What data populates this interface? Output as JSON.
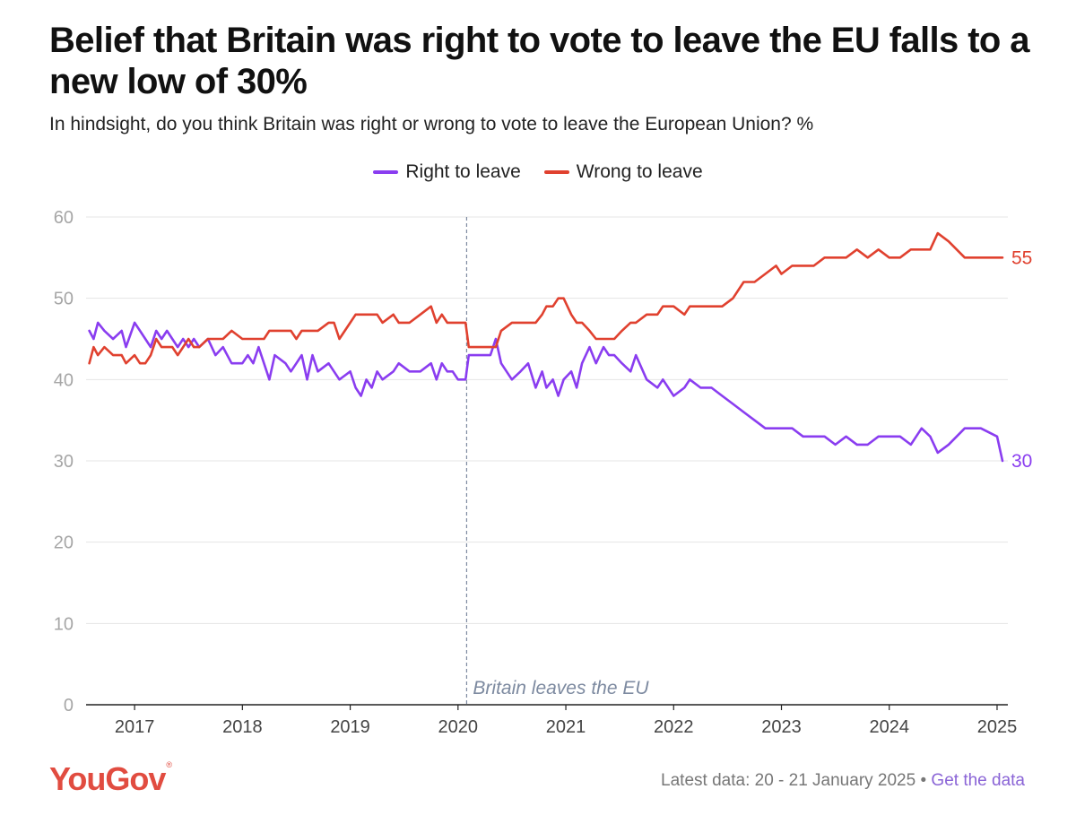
{
  "title": "Belief that Britain was right to vote to leave the EU falls to a new low of 30%",
  "subtitle": "In hindsight, do you think Britain was right or wrong to vote to leave the European Union? %",
  "footer": {
    "latest": "Latest data: 20 - 21 January 2025",
    "separator": "•",
    "link": "Get the data"
  },
  "logo": {
    "text": "YouGov",
    "mark": "®"
  },
  "colors": {
    "right": "#8a3df0",
    "wrong": "#e0412f",
    "grid": "#e4e4e4",
    "annotation_line": "#7d8aa0"
  },
  "chart_data": {
    "type": "line",
    "title": "Belief that Britain was right to vote to leave the EU falls to a new low of 30%",
    "subtitle": "In hindsight, do you think Britain was right or wrong to vote to leave the European Union? %",
    "ylim": [
      0,
      60
    ],
    "yticks": [
      0,
      10,
      20,
      30,
      40,
      50,
      60
    ],
    "xlim": [
      2016.55,
      2025.1
    ],
    "xticks": [
      2017,
      2018,
      2019,
      2020,
      2021,
      2022,
      2023,
      2024,
      2025
    ],
    "grid": true,
    "legend_position": "top-center",
    "annotation": {
      "x": 2020.08,
      "label": "Britain leaves the EU"
    },
    "series": [
      {
        "name": "Right to leave",
        "end_label": "30",
        "points": [
          [
            2016.58,
            46
          ],
          [
            2016.62,
            45
          ],
          [
            2016.66,
            47
          ],
          [
            2016.72,
            46
          ],
          [
            2016.8,
            45
          ],
          [
            2016.88,
            46
          ],
          [
            2016.92,
            44
          ],
          [
            2017.0,
            47
          ],
          [
            2017.05,
            46
          ],
          [
            2017.1,
            45
          ],
          [
            2017.15,
            44
          ],
          [
            2017.2,
            46
          ],
          [
            2017.25,
            45
          ],
          [
            2017.3,
            46
          ],
          [
            2017.35,
            45
          ],
          [
            2017.4,
            44
          ],
          [
            2017.45,
            45
          ],
          [
            2017.5,
            44
          ],
          [
            2017.55,
            45
          ],
          [
            2017.6,
            44
          ],
          [
            2017.68,
            45
          ],
          [
            2017.75,
            43
          ],
          [
            2017.82,
            44
          ],
          [
            2017.9,
            42
          ],
          [
            2018.0,
            42
          ],
          [
            2018.05,
            43
          ],
          [
            2018.1,
            42
          ],
          [
            2018.15,
            44
          ],
          [
            2018.2,
            42
          ],
          [
            2018.25,
            40
          ],
          [
            2018.3,
            43
          ],
          [
            2018.4,
            42
          ],
          [
            2018.45,
            41
          ],
          [
            2018.5,
            42
          ],
          [
            2018.55,
            43
          ],
          [
            2018.6,
            40
          ],
          [
            2018.65,
            43
          ],
          [
            2018.7,
            41
          ],
          [
            2018.8,
            42
          ],
          [
            2018.85,
            41
          ],
          [
            2018.9,
            40
          ],
          [
            2019.0,
            41
          ],
          [
            2019.05,
            39
          ],
          [
            2019.1,
            38
          ],
          [
            2019.15,
            40
          ],
          [
            2019.2,
            39
          ],
          [
            2019.25,
            41
          ],
          [
            2019.3,
            40
          ],
          [
            2019.4,
            41
          ],
          [
            2019.45,
            42
          ],
          [
            2019.55,
            41
          ],
          [
            2019.65,
            41
          ],
          [
            2019.75,
            42
          ],
          [
            2019.8,
            40
          ],
          [
            2019.85,
            42
          ],
          [
            2019.9,
            41
          ],
          [
            2019.95,
            41
          ],
          [
            2020.0,
            40
          ],
          [
            2020.07,
            40
          ],
          [
            2020.1,
            43
          ],
          [
            2020.2,
            43
          ],
          [
            2020.3,
            43
          ],
          [
            2020.35,
            45
          ],
          [
            2020.4,
            42
          ],
          [
            2020.5,
            40
          ],
          [
            2020.58,
            41
          ],
          [
            2020.65,
            42
          ],
          [
            2020.72,
            39
          ],
          [
            2020.78,
            41
          ],
          [
            2020.82,
            39
          ],
          [
            2020.88,
            40
          ],
          [
            2020.93,
            38
          ],
          [
            2020.98,
            40
          ],
          [
            2021.05,
            41
          ],
          [
            2021.1,
            39
          ],
          [
            2021.15,
            42
          ],
          [
            2021.22,
            44
          ],
          [
            2021.28,
            42
          ],
          [
            2021.35,
            44
          ],
          [
            2021.4,
            43
          ],
          [
            2021.45,
            43
          ],
          [
            2021.52,
            42
          ],
          [
            2021.6,
            41
          ],
          [
            2021.65,
            43
          ],
          [
            2021.75,
            40
          ],
          [
            2021.85,
            39
          ],
          [
            2021.9,
            40
          ],
          [
            2022.0,
            38
          ],
          [
            2022.1,
            39
          ],
          [
            2022.15,
            40
          ],
          [
            2022.25,
            39
          ],
          [
            2022.35,
            39
          ],
          [
            2022.45,
            38
          ],
          [
            2022.55,
            37
          ],
          [
            2022.65,
            36
          ],
          [
            2022.75,
            35
          ],
          [
            2022.85,
            34
          ],
          [
            2022.95,
            34
          ],
          [
            2023.0,
            34
          ],
          [
            2023.1,
            34
          ],
          [
            2023.2,
            33
          ],
          [
            2023.3,
            33
          ],
          [
            2023.4,
            33
          ],
          [
            2023.5,
            32
          ],
          [
            2023.6,
            33
          ],
          [
            2023.7,
            32
          ],
          [
            2023.8,
            32
          ],
          [
            2023.9,
            33
          ],
          [
            2024.0,
            33
          ],
          [
            2024.1,
            33
          ],
          [
            2024.2,
            32
          ],
          [
            2024.3,
            34
          ],
          [
            2024.38,
            33
          ],
          [
            2024.45,
            31
          ],
          [
            2024.55,
            32
          ],
          [
            2024.7,
            34
          ],
          [
            2024.85,
            34
          ],
          [
            2025.0,
            33
          ],
          [
            2025.05,
            30
          ]
        ]
      },
      {
        "name": "Wrong to leave",
        "end_label": "55",
        "points": [
          [
            2016.58,
            42
          ],
          [
            2016.62,
            44
          ],
          [
            2016.66,
            43
          ],
          [
            2016.72,
            44
          ],
          [
            2016.8,
            43
          ],
          [
            2016.88,
            43
          ],
          [
            2016.92,
            42
          ],
          [
            2017.0,
            43
          ],
          [
            2017.05,
            42
          ],
          [
            2017.1,
            42
          ],
          [
            2017.15,
            43
          ],
          [
            2017.2,
            45
          ],
          [
            2017.25,
            44
          ],
          [
            2017.3,
            44
          ],
          [
            2017.35,
            44
          ],
          [
            2017.4,
            43
          ],
          [
            2017.45,
            44
          ],
          [
            2017.5,
            45
          ],
          [
            2017.55,
            44
          ],
          [
            2017.6,
            44
          ],
          [
            2017.68,
            45
          ],
          [
            2017.75,
            45
          ],
          [
            2017.82,
            45
          ],
          [
            2017.9,
            46
          ],
          [
            2018.0,
            45
          ],
          [
            2018.05,
            45
          ],
          [
            2018.1,
            45
          ],
          [
            2018.15,
            45
          ],
          [
            2018.2,
            45
          ],
          [
            2018.25,
            46
          ],
          [
            2018.3,
            46
          ],
          [
            2018.4,
            46
          ],
          [
            2018.45,
            46
          ],
          [
            2018.5,
            45
          ],
          [
            2018.55,
            46
          ],
          [
            2018.6,
            46
          ],
          [
            2018.65,
            46
          ],
          [
            2018.7,
            46
          ],
          [
            2018.8,
            47
          ],
          [
            2018.85,
            47
          ],
          [
            2018.9,
            45
          ],
          [
            2019.0,
            47
          ],
          [
            2019.05,
            48
          ],
          [
            2019.1,
            48
          ],
          [
            2019.15,
            48
          ],
          [
            2019.2,
            48
          ],
          [
            2019.25,
            48
          ],
          [
            2019.3,
            47
          ],
          [
            2019.4,
            48
          ],
          [
            2019.45,
            47
          ],
          [
            2019.55,
            47
          ],
          [
            2019.65,
            48
          ],
          [
            2019.75,
            49
          ],
          [
            2019.8,
            47
          ],
          [
            2019.85,
            48
          ],
          [
            2019.9,
            47
          ],
          [
            2019.95,
            47
          ],
          [
            2020.0,
            47
          ],
          [
            2020.07,
            47
          ],
          [
            2020.1,
            44
          ],
          [
            2020.2,
            44
          ],
          [
            2020.3,
            44
          ],
          [
            2020.35,
            44
          ],
          [
            2020.4,
            46
          ],
          [
            2020.5,
            47
          ],
          [
            2020.58,
            47
          ],
          [
            2020.65,
            47
          ],
          [
            2020.72,
            47
          ],
          [
            2020.78,
            48
          ],
          [
            2020.82,
            49
          ],
          [
            2020.88,
            49
          ],
          [
            2020.93,
            50
          ],
          [
            2020.98,
            50
          ],
          [
            2021.05,
            48
          ],
          [
            2021.1,
            47
          ],
          [
            2021.15,
            47
          ],
          [
            2021.22,
            46
          ],
          [
            2021.28,
            45
          ],
          [
            2021.35,
            45
          ],
          [
            2021.4,
            45
          ],
          [
            2021.45,
            45
          ],
          [
            2021.52,
            46
          ],
          [
            2021.6,
            47
          ],
          [
            2021.65,
            47
          ],
          [
            2021.75,
            48
          ],
          [
            2021.85,
            48
          ],
          [
            2021.9,
            49
          ],
          [
            2022.0,
            49
          ],
          [
            2022.1,
            48
          ],
          [
            2022.15,
            49
          ],
          [
            2022.25,
            49
          ],
          [
            2022.35,
            49
          ],
          [
            2022.45,
            49
          ],
          [
            2022.55,
            50
          ],
          [
            2022.65,
            52
          ],
          [
            2022.75,
            52
          ],
          [
            2022.85,
            53
          ],
          [
            2022.95,
            54
          ],
          [
            2023.0,
            53
          ],
          [
            2023.1,
            54
          ],
          [
            2023.2,
            54
          ],
          [
            2023.3,
            54
          ],
          [
            2023.4,
            55
          ],
          [
            2023.5,
            55
          ],
          [
            2023.6,
            55
          ],
          [
            2023.7,
            56
          ],
          [
            2023.8,
            55
          ],
          [
            2023.9,
            56
          ],
          [
            2024.0,
            55
          ],
          [
            2024.1,
            55
          ],
          [
            2024.2,
            56
          ],
          [
            2024.3,
            56
          ],
          [
            2024.38,
            56
          ],
          [
            2024.45,
            58
          ],
          [
            2024.55,
            57
          ],
          [
            2024.7,
            55
          ],
          [
            2024.85,
            55
          ],
          [
            2025.0,
            55
          ],
          [
            2025.05,
            55
          ]
        ]
      }
    ]
  }
}
